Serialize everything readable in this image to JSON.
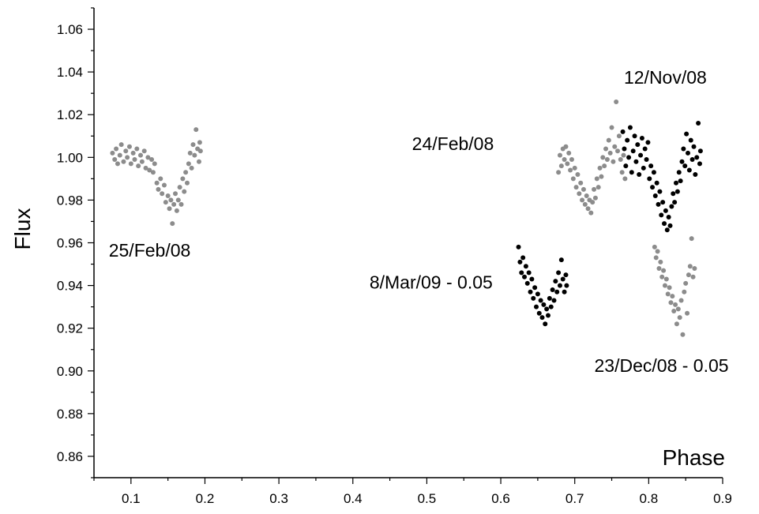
{
  "chart_data": {
    "type": "scatter",
    "title": "",
    "xlabel": "Phase",
    "ylabel": "Flux",
    "xlim": [
      0.05,
      0.9
    ],
    "ylim": [
      0.85,
      1.07
    ],
    "x_ticks": [
      0.1,
      0.2,
      0.3,
      0.4,
      0.5,
      0.6,
      0.7,
      0.8,
      0.9
    ],
    "x_tick_labels": [
      "0.1",
      "0.2",
      "0.3",
      "0.4",
      "0.5",
      "0.6",
      "0.7",
      "0.8",
      "0.9"
    ],
    "y_ticks": [
      0.86,
      0.88,
      0.9,
      0.92,
      0.94,
      0.96,
      0.98,
      1.0,
      1.02,
      1.04,
      1.06
    ],
    "y_tick_labels": [
      "0.86",
      "0.88",
      "0.90",
      "0.92",
      "0.94",
      "0.96",
      "0.98",
      "1.00",
      "1.02",
      "1.04",
      "1.06"
    ],
    "grid": false,
    "series": [
      {
        "name": "25/Feb/08",
        "color": "#8c8c8c",
        "points": [
          [
            0.075,
            1.002
          ],
          [
            0.078,
            0.999
          ],
          [
            0.08,
            1.004
          ],
          [
            0.082,
            0.997
          ],
          [
            0.085,
            1.001
          ],
          [
            0.087,
            1.006
          ],
          [
            0.09,
            0.998
          ],
          [
            0.093,
            1.003
          ],
          [
            0.095,
            1.0
          ],
          [
            0.098,
            1.005
          ],
          [
            0.1,
            0.997
          ],
          [
            0.103,
            1.002
          ],
          [
            0.105,
            0.999
          ],
          [
            0.108,
            1.004
          ],
          [
            0.11,
            0.996
          ],
          [
            0.113,
            1.001
          ],
          [
            0.115,
            0.998
          ],
          [
            0.118,
            1.003
          ],
          [
            0.12,
            0.995
          ],
          [
            0.123,
            1.0
          ],
          [
            0.125,
            0.994
          ],
          [
            0.128,
            0.999
          ],
          [
            0.13,
            0.993
          ],
          [
            0.132,
            0.997
          ],
          [
            0.135,
            0.988
          ],
          [
            0.137,
            0.985
          ],
          [
            0.14,
            0.99
          ],
          [
            0.142,
            0.983
          ],
          [
            0.145,
            0.987
          ],
          [
            0.147,
            0.979
          ],
          [
            0.15,
            0.982
          ],
          [
            0.152,
            0.976
          ],
          [
            0.154,
            0.98
          ],
          [
            0.156,
            0.969
          ],
          [
            0.158,
            0.978
          ],
          [
            0.16,
            0.983
          ],
          [
            0.162,
            0.975
          ],
          [
            0.164,
            0.98
          ],
          [
            0.166,
            0.986
          ],
          [
            0.168,
            0.978
          ],
          [
            0.17,
            0.99
          ],
          [
            0.172,
            0.984
          ],
          [
            0.174,
            0.993
          ],
          [
            0.176,
            0.988
          ],
          [
            0.178,
            0.997
          ],
          [
            0.18,
            1.002
          ],
          [
            0.182,
            0.995
          ],
          [
            0.184,
            1.006
          ],
          [
            0.186,
            1.001
          ],
          [
            0.188,
            1.013
          ],
          [
            0.19,
            1.004
          ],
          [
            0.192,
            0.998
          ],
          [
            0.193,
            1.007
          ],
          [
            0.194,
            1.003
          ]
        ]
      },
      {
        "name": "24/Feb/08",
        "color": "#8c8c8c",
        "points": [
          [
            0.678,
            0.993
          ],
          [
            0.68,
            1.001
          ],
          [
            0.682,
            0.996
          ],
          [
            0.684,
            1.004
          ],
          [
            0.686,
            0.999
          ],
          [
            0.688,
            1.005
          ],
          [
            0.69,
            0.997
          ],
          [
            0.692,
            1.002
          ],
          [
            0.694,
            0.994
          ],
          [
            0.696,
            0.999
          ],
          [
            0.698,
            0.99
          ],
          [
            0.7,
            0.995
          ],
          [
            0.702,
            0.986
          ],
          [
            0.704,
            0.992
          ],
          [
            0.706,
            0.983
          ],
          [
            0.708,
            0.988
          ],
          [
            0.71,
            0.98
          ],
          [
            0.712,
            0.985
          ],
          [
            0.714,
            0.978
          ],
          [
            0.716,
            0.982
          ],
          [
            0.718,
            0.976
          ],
          [
            0.72,
            0.98
          ],
          [
            0.722,
            0.974
          ],
          [
            0.724,
            0.979
          ],
          [
            0.726,
            0.985
          ],
          [
            0.728,
            0.981
          ],
          [
            0.73,
            0.99
          ],
          [
            0.732,
            0.986
          ],
          [
            0.734,
            0.995
          ],
          [
            0.736,
            0.991
          ],
          [
            0.738,
            1.0
          ],
          [
            0.74,
            0.996
          ],
          [
            0.742,
            1.004
          ],
          [
            0.744,
            0.999
          ],
          [
            0.746,
            1.008
          ],
          [
            0.748,
            1.002
          ],
          [
            0.75,
            1.014
          ],
          [
            0.752,
            0.998
          ],
          [
            0.754,
            1.005
          ],
          [
            0.756,
            1.026
          ],
          [
            0.758,
            1.003
          ],
          [
            0.76,
            1.01
          ],
          [
            0.762,
            0.999
          ],
          [
            0.764,
            0.993
          ],
          [
            0.766,
            1.001
          ],
          [
            0.768,
            0.99
          ]
        ]
      },
      {
        "name": "12/Nov/08",
        "color": "#000000",
        "points": [
          [
            0.765,
            1.012
          ],
          [
            0.767,
            1.004
          ],
          [
            0.769,
            0.996
          ],
          [
            0.771,
            1.008
          ],
          [
            0.773,
            1.0
          ],
          [
            0.775,
            1.014
          ],
          [
            0.777,
            0.993
          ],
          [
            0.779,
            1.003
          ],
          [
            0.781,
            1.01
          ],
          [
            0.783,
            0.998
          ],
          [
            0.785,
            1.006
          ],
          [
            0.787,
            0.992
          ],
          [
            0.789,
            1.001
          ],
          [
            0.791,
            1.009
          ],
          [
            0.793,
            0.995
          ],
          [
            0.795,
            1.004
          ],
          [
            0.797,
            0.999
          ],
          [
            0.799,
            1.007
          ],
          [
            0.801,
            0.99
          ],
          [
            0.803,
            0.996
          ],
          [
            0.805,
            0.986
          ],
          [
            0.807,
            0.993
          ],
          [
            0.809,
            0.982
          ],
          [
            0.811,
            0.988
          ],
          [
            0.813,
            0.978
          ],
          [
            0.815,
            0.984
          ],
          [
            0.817,
            0.973
          ],
          [
            0.819,
            0.979
          ],
          [
            0.821,
            0.969
          ],
          [
            0.823,
            0.975
          ],
          [
            0.825,
            0.966
          ],
          [
            0.827,
            0.972
          ],
          [
            0.829,
            0.968
          ],
          [
            0.831,
            0.977
          ],
          [
            0.833,
            0.983
          ],
          [
            0.835,
            0.979
          ],
          [
            0.837,
            0.988
          ],
          [
            0.839,
            0.984
          ],
          [
            0.841,
            0.993
          ],
          [
            0.843,
            0.989
          ],
          [
            0.845,
            0.998
          ],
          [
            0.847,
            1.004
          ],
          [
            0.849,
            0.996
          ],
          [
            0.851,
            1.011
          ],
          [
            0.853,
            1.002
          ],
          [
            0.855,
            0.994
          ],
          [
            0.857,
            1.008
          ],
          [
            0.859,
            0.999
          ],
          [
            0.861,
            1.005
          ],
          [
            0.863,
            0.992
          ],
          [
            0.865,
            1.0
          ],
          [
            0.867,
            1.016
          ],
          [
            0.869,
            0.997
          ],
          [
            0.87,
            1.003
          ]
        ]
      },
      {
        "name": "8/Mar/09 - 0.05",
        "color": "#000000",
        "points": [
          [
            0.624,
            0.958
          ],
          [
            0.626,
            0.951
          ],
          [
            0.628,
            0.946
          ],
          [
            0.63,
            0.953
          ],
          [
            0.632,
            0.944
          ],
          [
            0.634,
            0.949
          ],
          [
            0.636,
            0.941
          ],
          [
            0.638,
            0.946
          ],
          [
            0.64,
            0.937
          ],
          [
            0.642,
            0.943
          ],
          [
            0.644,
            0.934
          ],
          [
            0.646,
            0.939
          ],
          [
            0.648,
            0.93
          ],
          [
            0.65,
            0.936
          ],
          [
            0.652,
            0.927
          ],
          [
            0.654,
            0.933
          ],
          [
            0.656,
            0.925
          ],
          [
            0.658,
            0.931
          ],
          [
            0.66,
            0.922
          ],
          [
            0.662,
            0.929
          ],
          [
            0.664,
            0.926
          ],
          [
            0.666,
            0.934
          ],
          [
            0.668,
            0.93
          ],
          [
            0.67,
            0.938
          ],
          [
            0.672,
            0.933
          ],
          [
            0.674,
            0.942
          ],
          [
            0.676,
            0.937
          ],
          [
            0.678,
            0.946
          ],
          [
            0.68,
            0.94
          ],
          [
            0.682,
            0.952
          ],
          [
            0.684,
            0.943
          ],
          [
            0.686,
            0.937
          ],
          [
            0.688,
            0.945
          ],
          [
            0.689,
            0.94
          ]
        ]
      },
      {
        "name": "23/Dec/08 - 0.05",
        "color": "#8c8c8c",
        "points": [
          [
            0.808,
            0.958
          ],
          [
            0.81,
            0.953
          ],
          [
            0.812,
            0.956
          ],
          [
            0.814,
            0.948
          ],
          [
            0.816,
            0.951
          ],
          [
            0.818,
            0.944
          ],
          [
            0.82,
            0.947
          ],
          [
            0.822,
            0.94
          ],
          [
            0.824,
            0.943
          ],
          [
            0.826,
            0.936
          ],
          [
            0.828,
            0.939
          ],
          [
            0.83,
            0.932
          ],
          [
            0.832,
            0.935
          ],
          [
            0.834,
            0.928
          ],
          [
            0.836,
            0.931
          ],
          [
            0.838,
            0.922
          ],
          [
            0.84,
            0.929
          ],
          [
            0.842,
            0.925
          ],
          [
            0.844,
            0.933
          ],
          [
            0.846,
            0.917
          ],
          [
            0.848,
            0.937
          ],
          [
            0.85,
            0.941
          ],
          [
            0.852,
            0.927
          ],
          [
            0.854,
            0.945
          ],
          [
            0.856,
            0.949
          ],
          [
            0.858,
            0.962
          ],
          [
            0.86,
            0.944
          ],
          [
            0.862,
            0.948
          ]
        ]
      }
    ],
    "annotations": [
      {
        "text": "25/Feb/08",
        "x": 0.07,
        "y": 0.9535
      },
      {
        "text": "24/Feb/08",
        "x": 0.48,
        "y": 1.0035
      },
      {
        "text": "12/Nov/08",
        "x": 0.7665,
        "y": 1.0345
      },
      {
        "text": "8/Mar/09 - 0.05",
        "x": 0.4225,
        "y": 0.9385
      },
      {
        "text": "23/Dec/08 - 0.05",
        "x": 0.7265,
        "y": 0.8995
      }
    ]
  }
}
